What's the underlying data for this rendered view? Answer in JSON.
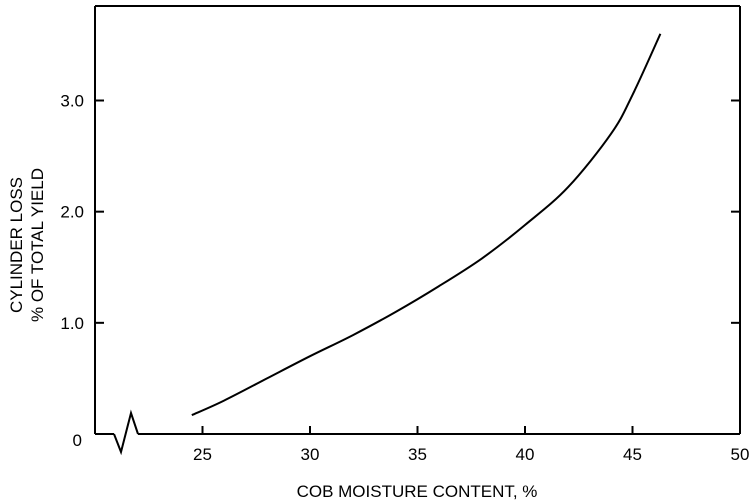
{
  "chart_data": {
    "type": "line",
    "title": "",
    "xlabel": "COB MOISTURE CONTENT, %",
    "ylabel_lines": [
      "CYLINDER LOSS",
      "% OF TOTAL YIELD"
    ],
    "x_ticks": [
      "25",
      "30",
      "35",
      "40",
      "45",
      "50"
    ],
    "y_ticks": [
      "0",
      "1.0",
      "2.0",
      "3.0"
    ],
    "xlim": [
      20,
      50
    ],
    "ylim": [
      0,
      3.85
    ],
    "x_axis_break": true,
    "grid": false,
    "series": [
      {
        "x": [
          24.5,
          26,
          28,
          30,
          32,
          34,
          36,
          38,
          40,
          42,
          44,
          45,
          46.3
        ],
        "y": [
          0.17,
          0.3,
          0.5,
          0.7,
          0.89,
          1.1,
          1.33,
          1.58,
          1.88,
          2.22,
          2.7,
          3.05,
          3.6
        ]
      }
    ]
  }
}
